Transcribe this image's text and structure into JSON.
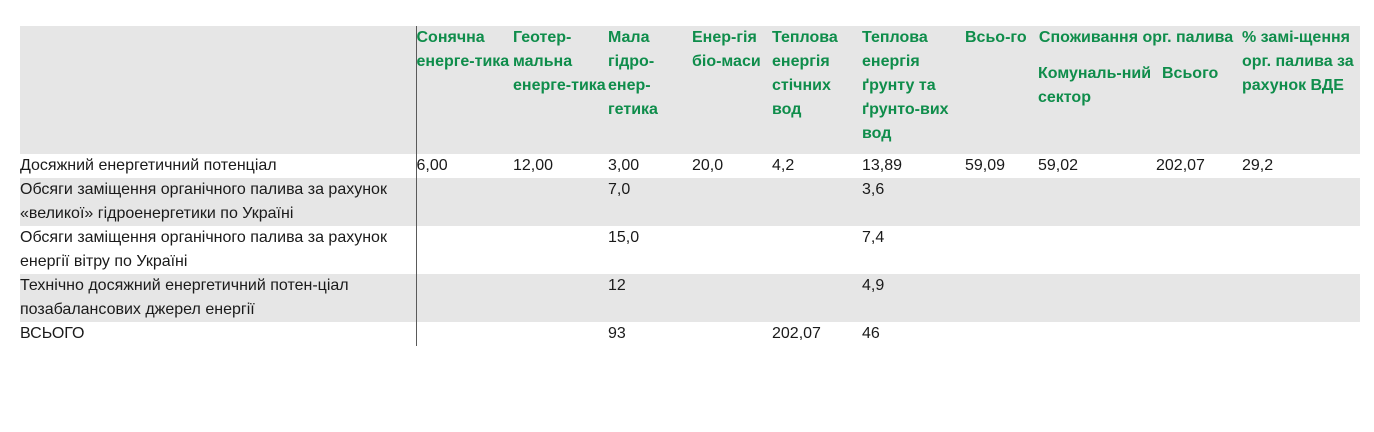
{
  "table": {
    "columns": [
      "Сонячна енерге-тика",
      "Геотер-мальна енерге-тика",
      "Мала гідро-енер-гетика",
      "Енер-гія біо-маси",
      "Теплова енергія стічних вод",
      "Теплова енергія ґрунту та ґрунто-вих вод",
      "Всьо-го"
    ],
    "consumption_group": "Споживання орг. палива",
    "consumption_sub": [
      "Комуналь-ний сектор",
      "Всього"
    ],
    "last_column": "% замі-щення орг. палива за рахунок ВДЕ",
    "rows": [
      {
        "label": "Досяжний енергетичний потенціал",
        "values": [
          "6,00",
          "12,00",
          "3,00",
          "20,0",
          "4,2",
          "13,89",
          "59,09",
          "59,02",
          "202,07",
          "29,2"
        ]
      },
      {
        "label": "Обсяги заміщення органічного палива за рахунок «великої» гідроенергетики по Україні",
        "values": [
          "",
          "",
          "7,0",
          "",
          "",
          "3,6",
          "",
          "",
          "",
          ""
        ]
      },
      {
        "label": "Обсяги заміщення органічного палива за рахунок енергії вітру по Україні",
        "values": [
          "",
          "",
          "15,0",
          "",
          "",
          "7,4",
          "",
          "",
          "",
          ""
        ]
      },
      {
        "label": "Технічно досяжний енергетичний потен-ціал позабалансових джерел енергії",
        "values": [
          "",
          "",
          "12",
          "",
          "",
          "4,9",
          "",
          "",
          "",
          ""
        ]
      },
      {
        "label": "ВСЬОГО",
        "values": [
          "",
          "",
          "93",
          "",
          "202,07",
          "46",
          "",
          "",
          "",
          ""
        ]
      }
    ]
  }
}
